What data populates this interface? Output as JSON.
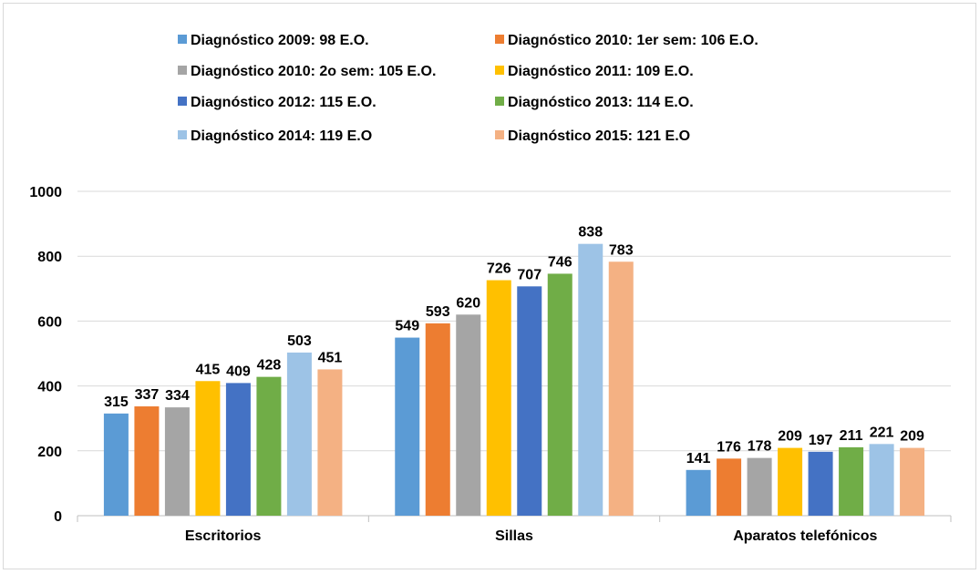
{
  "chart_data": {
    "type": "bar",
    "title": "",
    "xlabel": "",
    "ylabel": "",
    "ylim": [
      0,
      1000
    ],
    "yticks": [
      0,
      200,
      400,
      600,
      800,
      1000
    ],
    "grid": true,
    "legend_position": "top",
    "categories": [
      "Escritorios",
      "Sillas",
      "Aparatos telefónicos"
    ],
    "series": [
      {
        "name": "Diagnóstico 2009: 98 E.O.",
        "color": "#5b9bd5",
        "values": [
          315,
          549,
          141
        ]
      },
      {
        "name": "Diagnóstico 2010: 1er sem: 106 E.O.",
        "color": "#ed7d31",
        "values": [
          337,
          593,
          176
        ]
      },
      {
        "name": "Diagnóstico 2010: 2o sem: 105 E.O.",
        "color": "#a5a5a5",
        "values": [
          334,
          620,
          178
        ]
      },
      {
        "name": "Diagnóstico 2011: 109 E.O.",
        "color": "#ffc000",
        "values": [
          415,
          726,
          209
        ]
      },
      {
        "name": "Diagnóstico 2012: 115 E.O.",
        "color": "#4472c4",
        "values": [
          409,
          707,
          197
        ]
      },
      {
        "name": "Diagnóstico 2013: 114 E.O.",
        "color": "#70ad47",
        "values": [
          428,
          746,
          211
        ]
      },
      {
        "name": "Diagnóstico 2014: 119 E.O",
        "color": "#9dc3e6",
        "values": [
          503,
          838,
          221
        ]
      },
      {
        "name": "Diagnóstico 2015: 121 E.O",
        "color": "#f4b183",
        "values": [
          451,
          783,
          209
        ]
      }
    ]
  }
}
